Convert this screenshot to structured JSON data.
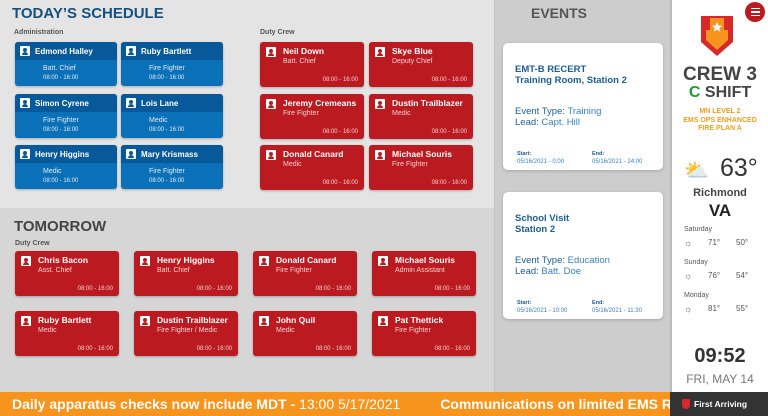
{
  "today": {
    "title": "TODAY’S SCHEDULE",
    "admin_label": "Administration",
    "duty_label": "Duty Crew",
    "admin": [
      {
        "name": "Edmond Halley",
        "role": "Batt. Chief",
        "time": "08:00 - 16:00"
      },
      {
        "name": "Ruby Bartlett",
        "role": "Fire Fighter",
        "time": "08:00 - 16:00"
      },
      {
        "name": "Simon Cyrene",
        "role": "Fire Fighter",
        "time": "08:00 - 16:00"
      },
      {
        "name": "Lois Lane",
        "role": "Medic",
        "time": "08:00 - 16:00"
      },
      {
        "name": "Henry Higgins",
        "role": "Medic",
        "time": "08:00 - 16:00"
      },
      {
        "name": "Mary Krismass",
        "role": "Fire Fighter",
        "time": "08:00 - 16:00"
      }
    ],
    "duty": [
      {
        "name": "Neil Down",
        "role": "Batt. Chief",
        "time": "08:00 - 16:00"
      },
      {
        "name": "Skye Blue",
        "role": "Deputy Chief",
        "time": "08:00 - 16:00"
      },
      {
        "name": "Jeremy Cremeans",
        "role": "Fire Fighter",
        "time": "08:00 - 16:00"
      },
      {
        "name": "Dustin Trailblazer",
        "role": "Medic",
        "time": "08:00 - 16:00"
      },
      {
        "name": "Donald Canard",
        "role": "Medic",
        "time": "08:00 - 16:00"
      },
      {
        "name": "Michael Souris",
        "role": "Fire Fighter",
        "time": "08:00 - 16:00"
      }
    ]
  },
  "tomorrow": {
    "title": "TOMORROW",
    "duty_label": "Duty Crew",
    "duty": [
      {
        "name": "Chris Bacon",
        "role": "Asst. Chief",
        "time": "08:00 - 16:00"
      },
      {
        "name": "Henry Higgins",
        "role": "Batt. Chief",
        "time": "08:00 - 16:00"
      },
      {
        "name": "Donald Canard",
        "role": "Fire Fighter",
        "time": "08:00 - 16:00"
      },
      {
        "name": "Michael Souris",
        "role": "Admin Assistant",
        "time": "08:00 - 16:00"
      },
      {
        "name": "Ruby Bartlett",
        "role": "Medic",
        "time": "08:00 - 16:00"
      },
      {
        "name": "Dustin Trailblazer",
        "role": "Fire Fighter / Medic",
        "time": "08:00 - 16:00"
      },
      {
        "name": "John Quil",
        "role": "Medic",
        "time": "08:00 - 16:00"
      },
      {
        "name": "Pat Thettick",
        "role": "Fire Fighter",
        "time": "08:00 - 16:00"
      }
    ]
  },
  "events": {
    "title": "EVENTS",
    "items": [
      {
        "title1": "EMT-B RECERT",
        "title2": "Training Room, Station 2",
        "type_label": "Event Type:",
        "type": "Training",
        "lead_label": "Lead:",
        "lead": "Capt. Hill",
        "start_label": "Start:",
        "start": "05/16/2021 - 0:00",
        "end_label": "End:",
        "end": "05/16/2021 - 24:00"
      },
      {
        "title1": "School Visit",
        "title2": "Station 2",
        "type_label": "Event Type:",
        "type": "Education",
        "lead_label": "Lead:",
        "lead": "Batt. Doe",
        "start_label": "Start:",
        "start": "05/16/2021 - 10:00",
        "end_label": "End:",
        "end": "05/16/2021 - 11:30"
      }
    ]
  },
  "side": {
    "crew": "CREW 3",
    "shift_letter": "C",
    "shift": "SHIFT",
    "notes": [
      "MN LEVEL 2",
      "EMS OPS ENHANCED",
      "FIRE PLAN A"
    ],
    "temp": "63°",
    "city": "Richmond",
    "state": "VA",
    "forecast": [
      {
        "day": "Saturday",
        "hi": "71°",
        "lo": "50°",
        "icon": "rain-sun-icon"
      },
      {
        "day": "Sunday",
        "hi": "76°",
        "lo": "54°",
        "icon": "partly-sunny-icon"
      },
      {
        "day": "Monday",
        "hi": "81°",
        "lo": "55°",
        "icon": "partly-sunny-icon"
      }
    ],
    "time": "09:52",
    "date": "FRI, MAY 14"
  },
  "ticker": {
    "msg1": "Daily apparatus checks now include MDT -",
    "msg1_time": "13:00 5/17/2021",
    "msg2": "Communications on limited EMS Re"
  },
  "brand": "First Arriving",
  "colors": {
    "blue": "#0a70b7",
    "red": "#bb1a20",
    "orange": "#f7941d",
    "green": "#1e9a3a"
  }
}
